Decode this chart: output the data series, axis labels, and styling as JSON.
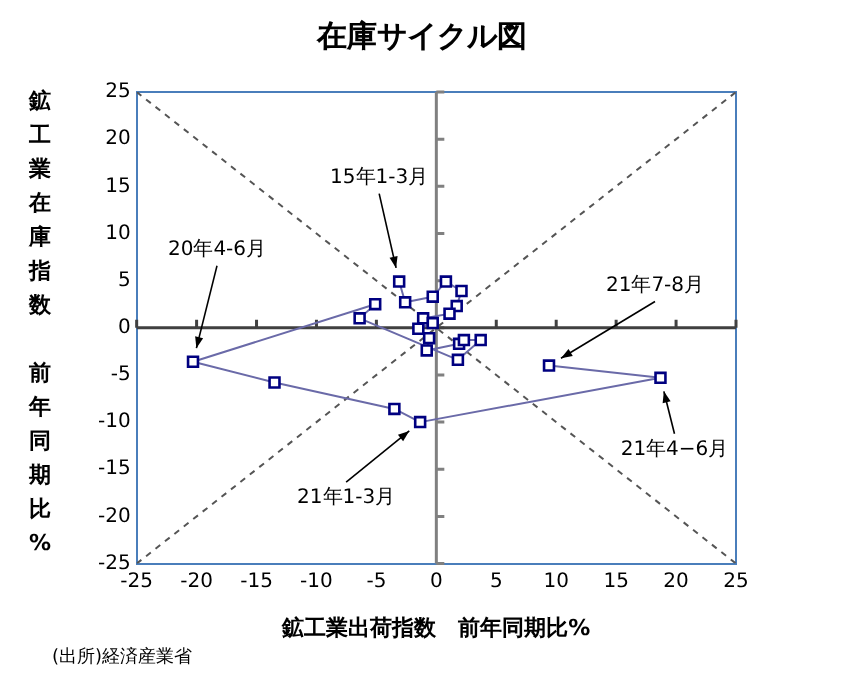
{
  "chart_data": {
    "type": "line",
    "title": "在庫サイクル図",
    "xlabel": "鉱工業出荷指数　前年同期比%",
    "ylabel": "鉱工業在庫指数前年同期比%",
    "xlim": [
      -25,
      25
    ],
    "xticks": [
      -25,
      -20,
      -15,
      -10,
      -5,
      0,
      5,
      10,
      15,
      20,
      25
    ],
    "ylim": [
      -25,
      25
    ],
    "yticks": [
      -25,
      -20,
      -15,
      -10,
      -5,
      0,
      5,
      10,
      15,
      20,
      25
    ],
    "grid": false,
    "legend": false,
    "series": [
      {
        "type": "line",
        "color": "#000080",
        "marker": "square",
        "line_style": "solid",
        "x": [
          -3.1,
          -2.6,
          -0.3,
          0.8,
          2.1,
          1.7,
          1.1,
          -1.1,
          -0.3,
          -1.5,
          -0.6,
          -0.8,
          1.9,
          2.3,
          3.7,
          1.8,
          -6.4,
          -5.1,
          -20.3,
          -13.5,
          -3.5,
          -1.35,
          18.7,
          9.4
        ],
        "values": [
          4.9,
          2.7,
          3.3,
          4.9,
          3.9,
          2.3,
          1.5,
          1.0,
          0.5,
          -0.1,
          -1.1,
          -2.4,
          -1.7,
          -1.3,
          -1.3,
          -3.4,
          1.0,
          2.5,
          -3.6,
          -5.8,
          -8.6,
          -10.0,
          -5.3,
          -4.0
        ]
      },
      {
        "type": "line",
        "color": "#555555",
        "marker": "none",
        "line_style": "dashed",
        "x": [
          -25,
          25
        ],
        "values": [
          -25,
          25
        ]
      },
      {
        "type": "line",
        "color": "#555555",
        "marker": "none",
        "line_style": "dashed",
        "x": [
          -25,
          25
        ],
        "values": [
          25,
          -25
        ]
      }
    ],
    "ref_lines": [
      {
        "axis": "x",
        "value": 0,
        "color": "#808080"
      },
      {
        "axis": "y",
        "value": 0,
        "color": "#404040"
      }
    ],
    "annotations": [
      {
        "text": "15年1-3月",
        "x": -3.1,
        "y": 4.9
      },
      {
        "text": "20年4-6月",
        "x": -20.3,
        "y": -3.6
      },
      {
        "text": "21年7-8月",
        "x": 9.4,
        "y": -4.0
      },
      {
        "text": "21年4−6月",
        "x": 18.7,
        "y": -5.3
      },
      {
        "text": "21年1-3月",
        "x": -1.35,
        "y": -10.0
      },
      "(出所)経済産業省"
    ]
  }
}
